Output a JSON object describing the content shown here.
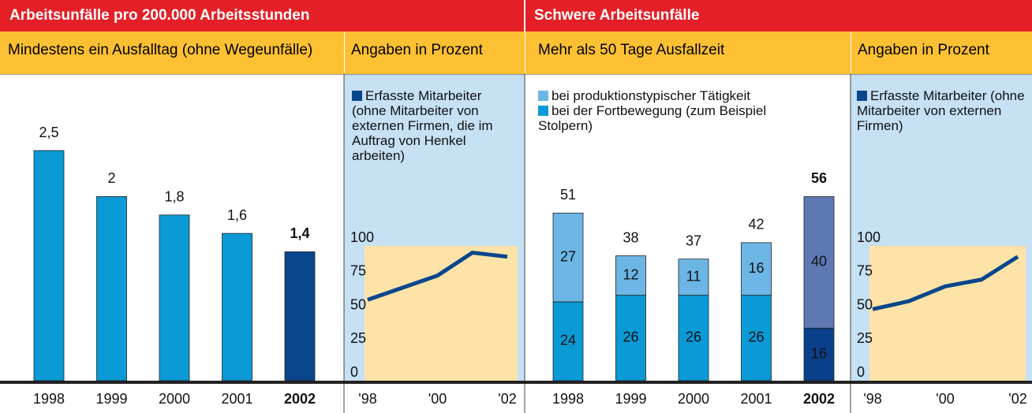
{
  "chart_data": [
    {
      "type": "bar",
      "title": "Arbeitsunfälle pro 200.000 Arbeitsstunden",
      "subtitle": "Mindestens ein Ausfalltag (ohne Wegeunfälle)",
      "categories": [
        "1998",
        "1999",
        "2000",
        "2001",
        "2002"
      ],
      "values": [
        2.5,
        2,
        1.8,
        1.6,
        1.4
      ],
      "value_labels": [
        "2,5",
        "2",
        "1,8",
        "1,6",
        "1,4"
      ],
      "colors": [
        "#0a9ad6",
        "#0a9ad6",
        "#0a9ad6",
        "#0a9ad6",
        "#0a468c"
      ]
    },
    {
      "type": "line",
      "subtitle": "Angaben in Prozent",
      "legend": "Erfasste Mitarbeiter (ohne Mitarbeiter von externen Firmen, die im Auftrag von Henkel arbeiten)",
      "categories": [
        "'98",
        null,
        "'00",
        null,
        "'02"
      ],
      "series": [
        {
          "name": "Erfasste Mitarbeiter",
          "color": "#0a468c",
          "values": [
            60,
            69,
            78,
            95,
            92
          ]
        }
      ],
      "ylim": [
        0,
        100
      ],
      "yticks": [
        0,
        25,
        50,
        75,
        100
      ]
    },
    {
      "type": "stacked_bar",
      "title": "Schwere Arbeitsunfälle",
      "subtitle": "Mehr als 50 Tage Ausfallzeit",
      "categories": [
        "1998",
        "1999",
        "2000",
        "2001",
        "2002"
      ],
      "series": [
        {
          "name": "bei der Fortbewegung (zum Bei­spiel Stolpern)",
          "color": "#0a9ad6",
          "bar_colors": [
            "#0a9ad6",
            "#0a9ad6",
            "#0a9ad6",
            "#0a9ad6",
            "#0a3f8a"
          ],
          "values": [
            24,
            26,
            26,
            26,
            16
          ]
        },
        {
          "name": "bei produktionstypischer Tätigkeit",
          "color": "#6cb6e6",
          "bar_colors": [
            "#6cb6e6",
            "#6cb6e6",
            "#6cb6e6",
            "#6cb6e6",
            "#5e78b4"
          ],
          "values": [
            27,
            12,
            11,
            16,
            40
          ]
        }
      ],
      "totals": [
        51,
        38,
        37,
        42,
        56
      ]
    },
    {
      "type": "line",
      "subtitle": "Angaben in Prozent",
      "legend": "Erfasste Mitarbeiter (ohne Mitarbeiter von externen Firmen)",
      "categories": [
        "'98",
        null,
        "'00",
        null,
        "'02"
      ],
      "series": [
        {
          "name": "Erfasste Mitarbeiter",
          "color": "#0a468c",
          "values": [
            53,
            59,
            70,
            75,
            92
          ]
        }
      ],
      "ylim": [
        0,
        100
      ],
      "yticks": [
        0,
        25,
        50,
        75,
        100
      ]
    }
  ]
}
